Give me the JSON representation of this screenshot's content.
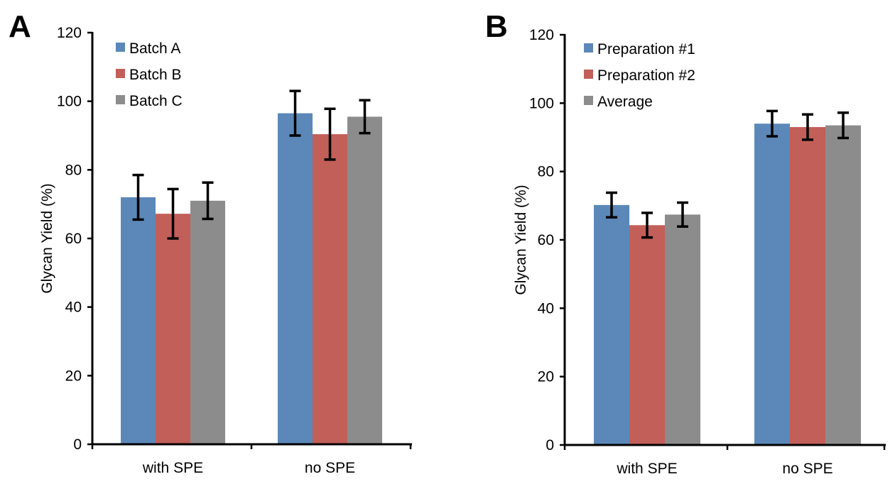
{
  "chart_data": [
    {
      "panel": "A",
      "type": "bar",
      "categories": [
        "with SPE",
        "no SPE"
      ],
      "series": [
        {
          "name": "Batch A",
          "color": "#5b88b8",
          "values": [
            72,
            96.5
          ],
          "errors": [
            6.5,
            6.5
          ]
        },
        {
          "name": "Batch B",
          "color": "#c25f59",
          "values": [
            67.2,
            90.4
          ],
          "errors": [
            7.2,
            7.4
          ]
        },
        {
          "name": "Batch C",
          "color": "#8c8c8c",
          "values": [
            71,
            95.5
          ],
          "errors": [
            5.3,
            4.8
          ]
        }
      ],
      "ylabel": "Glycan Yield (%)",
      "ylim": [
        0,
        120
      ],
      "yticks": [
        "0",
        "20",
        "40",
        "60",
        "80",
        "100",
        "120"
      ],
      "legend": "top-left"
    },
    {
      "panel": "B",
      "type": "bar",
      "categories": [
        "with SPE",
        "no SPE"
      ],
      "series": [
        {
          "name": "Preparation #1",
          "color": "#5b88b8",
          "values": [
            70.2,
            94
          ],
          "errors": [
            3.6,
            3.7
          ]
        },
        {
          "name": "Preparation #2",
          "color": "#c25f59",
          "values": [
            64.3,
            93
          ],
          "errors": [
            3.6,
            3.7
          ]
        },
        {
          "name": "Average",
          "color": "#8c8c8c",
          "values": [
            67.4,
            93.5
          ],
          "errors": [
            3.5,
            3.7
          ]
        }
      ],
      "ylabel": "Glycan Yield (%)",
      "ylim": [
        0,
        120
      ],
      "yticks": [
        "0",
        "20",
        "40",
        "60",
        "80",
        "100",
        "120"
      ],
      "legend": "top-left"
    }
  ]
}
